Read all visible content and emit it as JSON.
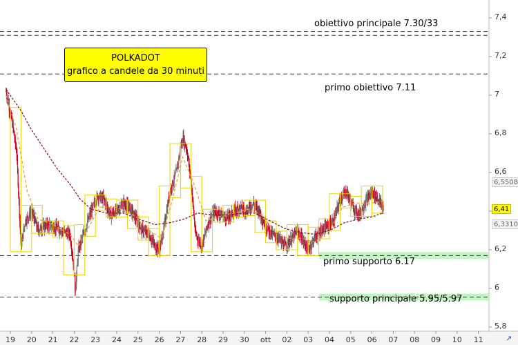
{
  "chart_data": {
    "type": "candlestick",
    "title_lines": [
      "POLKADOT",
      "grafico a candele da 30 minuti"
    ],
    "ylim": [
      5.8,
      7.45
    ],
    "y_ticks": [
      "7,4",
      "7,2",
      "7",
      "6,8",
      "6,6",
      "6,4",
      "6,2",
      "6",
      "5,8"
    ],
    "x_ticks": [
      "19",
      "20",
      "21",
      "22",
      "23",
      "24",
      "25",
      "26",
      "27",
      "28",
      "29",
      "30",
      "ott",
      "02",
      "03",
      "04",
      "05",
      "06",
      "07",
      "08",
      "09",
      "10",
      "11"
    ],
    "x_day_index": [
      0,
      1,
      2,
      3,
      4,
      5,
      6,
      7,
      8,
      9,
      10,
      11,
      12,
      13,
      14,
      15,
      16,
      17,
      18,
      19,
      20,
      21,
      22
    ],
    "price_labels": [
      {
        "value": 6.5508,
        "text": "6,5508",
        "style": "gray"
      },
      {
        "value": 6.41,
        "text": "6,41",
        "style": "yellow"
      },
      {
        "value": 6.331,
        "text": "6,3310",
        "style": "gray"
      }
    ],
    "levels": [
      {
        "label": "obiettivo principale 7.30/33",
        "values": [
          7.33,
          7.31
        ],
        "zone": false
      },
      {
        "label": "primo obiettivo 7.11",
        "values": [
          7.11
        ],
        "zone": false
      },
      {
        "label": "primo supporto 6.17",
        "values": [
          6.17
        ],
        "zone": true
      },
      {
        "label": "supporto principale 5.95/5.97",
        "values": [
          5.955
        ],
        "zone": true
      }
    ],
    "close_path": [
      [
        -0.2,
        7.02
      ],
      [
        0.1,
        6.85
      ],
      [
        0.3,
        6.7
      ],
      [
        0.5,
        6.22
      ],
      [
        0.7,
        6.35
      ],
      [
        1.0,
        6.4
      ],
      [
        1.3,
        6.3
      ],
      [
        1.7,
        6.33
      ],
      [
        2.0,
        6.32
      ],
      [
        2.4,
        6.3
      ],
      [
        2.8,
        6.28
      ],
      [
        3.0,
        6.1
      ],
      [
        3.05,
        5.98
      ],
      [
        3.2,
        6.2
      ],
      [
        3.5,
        6.3
      ],
      [
        3.8,
        6.4
      ],
      [
        4.1,
        6.48
      ],
      [
        4.4,
        6.46
      ],
      [
        4.7,
        6.38
      ],
      [
        5.0,
        6.4
      ],
      [
        5.3,
        6.44
      ],
      [
        5.6,
        6.42
      ],
      [
        5.9,
        6.36
      ],
      [
        6.2,
        6.3
      ],
      [
        6.5,
        6.28
      ],
      [
        6.8,
        6.22
      ],
      [
        7.0,
        6.2
      ],
      [
        7.2,
        6.3
      ],
      [
        7.5,
        6.5
      ],
      [
        7.8,
        6.6
      ],
      [
        8.1,
        6.78
      ],
      [
        8.3,
        6.72
      ],
      [
        8.5,
        6.55
      ],
      [
        8.7,
        6.28
      ],
      [
        9.0,
        6.22
      ],
      [
        9.3,
        6.34
      ],
      [
        9.6,
        6.4
      ],
      [
        9.9,
        6.38
      ],
      [
        10.2,
        6.36
      ],
      [
        10.5,
        6.4
      ],
      [
        10.8,
        6.42
      ],
      [
        11.1,
        6.4
      ],
      [
        11.4,
        6.44
      ],
      [
        11.7,
        6.4
      ],
      [
        12.0,
        6.32
      ],
      [
        12.3,
        6.28
      ],
      [
        12.6,
        6.26
      ],
      [
        12.9,
        6.22
      ],
      [
        13.2,
        6.25
      ],
      [
        13.5,
        6.3
      ],
      [
        13.8,
        6.24
      ],
      [
        14.0,
        6.2
      ],
      [
        14.3,
        6.26
      ],
      [
        14.6,
        6.3
      ],
      [
        14.9,
        6.32
      ],
      [
        15.2,
        6.35
      ],
      [
        15.5,
        6.46
      ],
      [
        15.8,
        6.5
      ],
      [
        16.1,
        6.42
      ],
      [
        16.4,
        6.38
      ],
      [
        16.7,
        6.45
      ],
      [
        17.0,
        6.5
      ],
      [
        17.3,
        6.46
      ],
      [
        17.55,
        6.41
      ]
    ],
    "ma_fast": [
      [
        -0.2,
        7.0
      ],
      [
        0.3,
        6.82
      ],
      [
        0.8,
        6.5
      ],
      [
        1.3,
        6.36
      ],
      [
        2.0,
        6.33
      ],
      [
        2.8,
        6.28
      ],
      [
        3.2,
        6.22
      ],
      [
        3.7,
        6.32
      ],
      [
        4.2,
        6.42
      ],
      [
        5.0,
        6.42
      ],
      [
        5.8,
        6.38
      ],
      [
        6.5,
        6.3
      ],
      [
        7.1,
        6.26
      ],
      [
        7.6,
        6.45
      ],
      [
        8.1,
        6.68
      ],
      [
        8.6,
        6.55
      ],
      [
        9.2,
        6.35
      ],
      [
        9.8,
        6.37
      ],
      [
        10.5,
        6.39
      ],
      [
        11.2,
        6.41
      ],
      [
        11.8,
        6.38
      ],
      [
        12.4,
        6.3
      ],
      [
        13.0,
        6.26
      ],
      [
        13.7,
        6.26
      ],
      [
        14.3,
        6.24
      ],
      [
        15.0,
        6.3
      ],
      [
        15.6,
        6.42
      ],
      [
        16.2,
        6.44
      ],
      [
        16.8,
        6.44
      ],
      [
        17.5,
        6.45
      ]
    ],
    "ma_slow": [
      [
        -0.2,
        7.03
      ],
      [
        0.5,
        6.92
      ],
      [
        1.0,
        6.82
      ],
      [
        1.6,
        6.72
      ],
      [
        2.2,
        6.62
      ],
      [
        2.8,
        6.54
      ],
      [
        3.3,
        6.46
      ],
      [
        3.8,
        6.41
      ],
      [
        4.5,
        6.39
      ],
      [
        5.3,
        6.39
      ],
      [
        6.0,
        6.36
      ],
      [
        6.8,
        6.33
      ],
      [
        7.5,
        6.34
      ],
      [
        8.2,
        6.36
      ],
      [
        8.8,
        6.39
      ],
      [
        9.5,
        6.38
      ],
      [
        10.2,
        6.38
      ],
      [
        10.9,
        6.39
      ],
      [
        11.5,
        6.39
      ],
      [
        12.2,
        6.35
      ],
      [
        12.9,
        6.31
      ],
      [
        13.6,
        6.29
      ],
      [
        14.3,
        6.28
      ],
      [
        15.0,
        6.3
      ],
      [
        15.7,
        6.34
      ],
      [
        16.4,
        6.36
      ],
      [
        17.0,
        6.37
      ],
      [
        17.5,
        6.39
      ]
    ]
  },
  "ui": {
    "corner_icon": "resize-arrow-icon"
  }
}
